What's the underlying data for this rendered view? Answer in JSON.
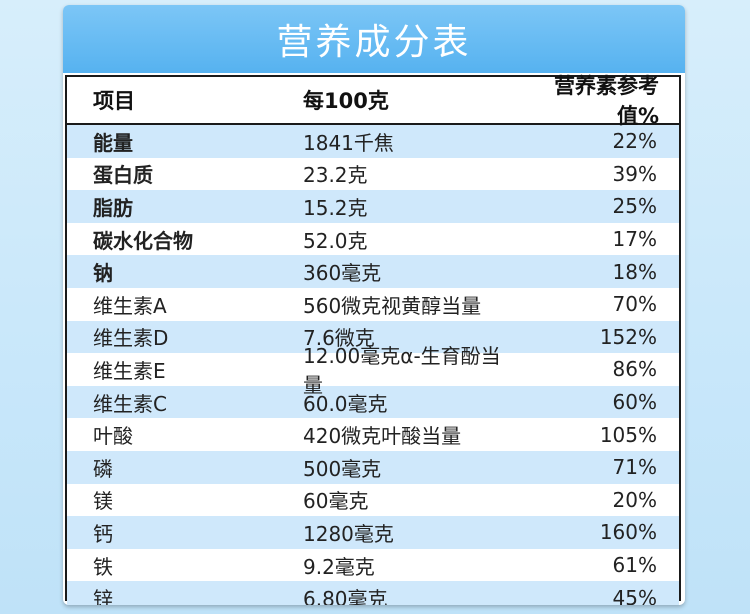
{
  "title": "营养成分表",
  "headers": {
    "item": "项目",
    "per100": "每100克",
    "nrv": "营养素参考值%"
  },
  "rows": [
    {
      "name": "能量",
      "amount": "1841千焦",
      "nrv": "22%",
      "bold": true
    },
    {
      "name": "蛋白质",
      "amount": "23.2克",
      "nrv": "39%",
      "bold": true
    },
    {
      "name": "脂肪",
      "amount": "15.2克",
      "nrv": "25%",
      "bold": true
    },
    {
      "name": "碳水化合物",
      "amount": "52.0克",
      "nrv": "17%",
      "bold": true
    },
    {
      "name": "钠",
      "amount": "360毫克",
      "nrv": "18%",
      "bold": true
    },
    {
      "name": "维生素A",
      "amount": "560微克视黄醇当量",
      "nrv": "70%",
      "bold": false
    },
    {
      "name": "维生素D",
      "amount": "7.6微克",
      "nrv": "152%",
      "bold": false
    },
    {
      "name": "维生素E",
      "amount": "12.00毫克α-生育酚当量",
      "nrv": "86%",
      "bold": false
    },
    {
      "name": "维生素C",
      "amount": "60.0毫克",
      "nrv": "60%",
      "bold": false
    },
    {
      "name": "叶酸",
      "amount": "420微克叶酸当量",
      "nrv": "105%",
      "bold": false
    },
    {
      "name": "磷",
      "amount": "500毫克",
      "nrv": "71%",
      "bold": false
    },
    {
      "name": "镁",
      "amount": "60毫克",
      "nrv": "20%",
      "bold": false
    },
    {
      "name": "钙",
      "amount": "1280毫克",
      "nrv": "160%",
      "bold": false
    },
    {
      "name": "铁",
      "amount": "9.2毫克",
      "nrv": "61%",
      "bold": false
    },
    {
      "name": "锌",
      "amount": "6.80毫克",
      "nrv": "45%",
      "bold": false
    }
  ],
  "colors": {
    "title_bar": "#56b2f0",
    "row_stripe": "#cfe8fb",
    "border": "#1a1a1a"
  }
}
